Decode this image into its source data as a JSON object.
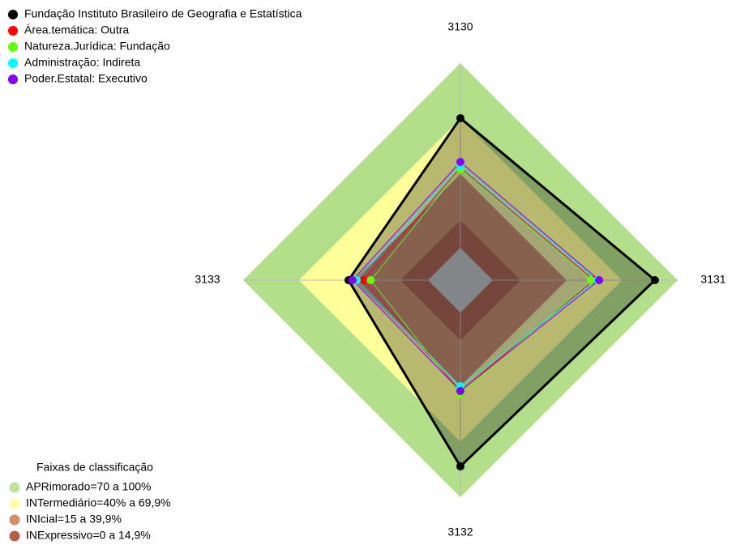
{
  "chart_data": {
    "type": "radar",
    "categories": [
      "3130",
      "3131",
      "3132",
      "3133"
    ],
    "ylim": [
      0,
      100
    ],
    "series": [
      {
        "name": "Fundação Instituto Brasileiro de Geografia e Estatística",
        "color": "#000000",
        "values": [
          70.2,
          87.7,
          83.3,
          43
        ]
      },
      {
        "name": "Área.temática: Outra",
        "color": "#ff0000",
        "values": [
          43.4,
          54.8,
          42.5,
          35
        ]
      },
      {
        "name": "Natureza.Jurídica: Fundação",
        "color": "#66ff00",
        "values": [
          42.5,
          53,
          44.3,
          31
        ]
      },
      {
        "name": "Administração: Indireta",
        "color": "#00ffff",
        "values": [
          44.3,
          56.6,
          39.9,
          38.6
        ]
      },
      {
        "name": "Poder.Estatal: Executivo",
        "color": "#8000ff",
        "values": [
          46.5,
          57.5,
          42.5,
          40.8
        ]
      }
    ],
    "bands_title": "Faixas de classificação",
    "bands": [
      {
        "name": "APRimorado=70 a 100%",
        "color": "#b3de8a",
        "range": [
          70,
          100
        ]
      },
      {
        "name": "INTermediário=40% a 69,9%",
        "color": "#ffff99",
        "range": [
          40,
          69.9
        ]
      },
      {
        "name": "INIcial=15 a 39,9%",
        "color": "#c97a4e",
        "range": [
          15,
          39.9
        ]
      },
      {
        "name": "INExpressivo=0 a 14,9%",
        "color": "#a8432c",
        "range": [
          0,
          14.9
        ]
      }
    ]
  }
}
